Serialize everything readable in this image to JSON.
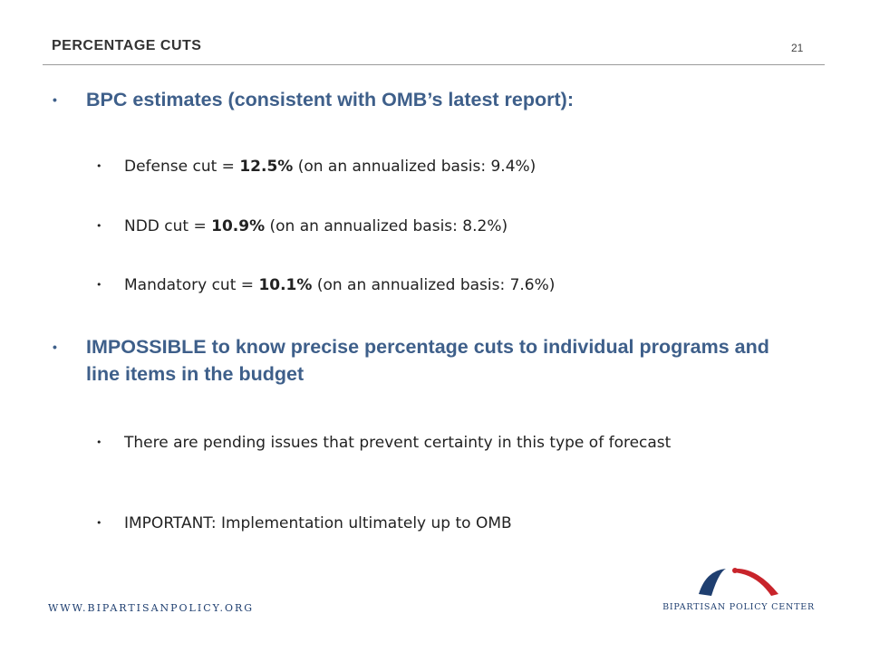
{
  "header": {
    "title": "PERCENTAGE CUTS",
    "page_number": "21"
  },
  "bullets": [
    {
      "text": "BPC estimates (consistent with OMB’s latest report):",
      "sub": [
        {
          "pre": "Defense cut = ",
          "bold": "12.5%",
          "post": " (on an annualized basis: 9.4%)"
        },
        {
          "pre": "NDD cut = ",
          "bold": "10.9%",
          "post": " (on an annualized basis: 8.2%)"
        },
        {
          "pre": "Mandatory cut = ",
          "bold": "10.1%",
          "post": " (on an annualized basis: 7.6%)"
        }
      ]
    },
    {
      "text": "IMPOSSIBLE to know precise percentage cuts to individual programs and line items in the budget",
      "sub": [
        {
          "text": "There are pending issues that prevent certainty in this type of forecast"
        },
        {
          "text": "IMPORTANT: Implementation ultimately up to OMB"
        }
      ]
    }
  ],
  "footer": {
    "url": "WWW.BIPARTISANPOLICY.ORG",
    "logo_text": "BIPARTISAN POLICY CENTER"
  },
  "colors": {
    "heading_blue": "#3e5f8a",
    "logo_blue": "#1f3f70",
    "logo_red": "#c8242b"
  },
  "icons": {
    "bullet": "•",
    "logo": "bipartisan-arcs-logo"
  }
}
